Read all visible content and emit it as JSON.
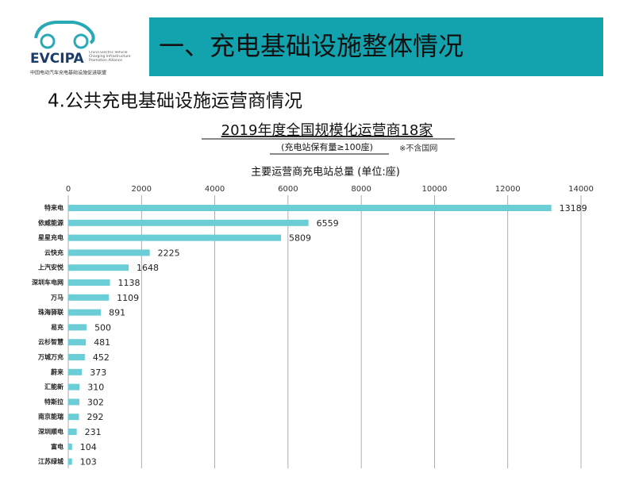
{
  "header": {
    "logo_name": "EVCIPA",
    "logo_english": "China Electric Vehicle Charging Infrastructure Promotion Alliance",
    "logo_chinese": "中国电动汽车充电基础设施促进联盟",
    "title": "一、充电基础设施整体情况"
  },
  "section_title": "4.公共充电基础设施运营商情况",
  "chart_data": {
    "type": "bar",
    "orientation": "horizontal",
    "title": "2019年度全国规模化运营商18家",
    "subtitle": "(充电站保有量≥100座)",
    "note": "※不含国网",
    "axis_title": "主要运营商充电站总量 (单位:座)",
    "categories": [
      "特来电",
      "依威能源",
      "星星充电",
      "云快充",
      "上汽安悦",
      "深圳车电网",
      "万马",
      "珠海驿联",
      "易充",
      "云杉智慧",
      "万城万充",
      "蔚来",
      "汇能新",
      "特斯拉",
      "南京能瑞",
      "深圳顺电",
      "富电",
      "江苏绿城"
    ],
    "values": [
      13189,
      6559,
      5809,
      2225,
      1648,
      1138,
      1109,
      891,
      500,
      481,
      452,
      373,
      310,
      302,
      292,
      231,
      104,
      103
    ],
    "color": "#6bcdd6",
    "xlim": [
      0,
      14000
    ],
    "xticks": [
      0,
      2000,
      4000,
      6000,
      8000,
      10000,
      12000,
      14000
    ],
    "grid": true
  }
}
